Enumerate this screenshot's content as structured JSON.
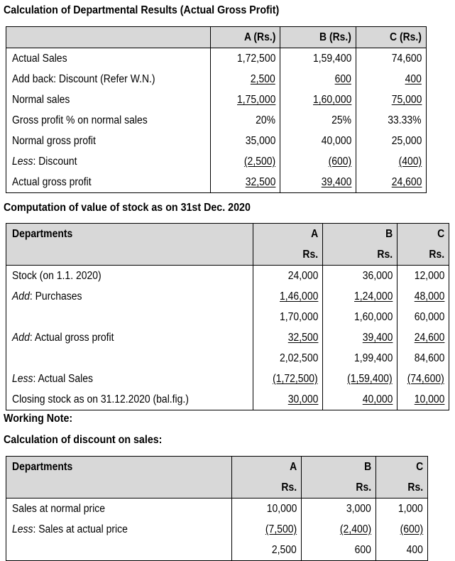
{
  "section1": {
    "title": "Calculation of Departmental Results (Actual Gross Profit)",
    "columns": [
      "A (Rs.)",
      "B (Rs.)",
      "C (Rs.)"
    ],
    "rows": [
      {
        "label": "Actual Sales",
        "values": [
          "1,72,500",
          "1,59,400",
          "74,600"
        ],
        "underline": false
      },
      {
        "label": "Add back: Discount (Refer W.N.)",
        "values": [
          "2,500",
          "600",
          "400"
        ],
        "underline": true
      },
      {
        "label": "Normal sales",
        "values": [
          "1,75,000",
          "1,60,000",
          "75,000"
        ],
        "underline": true
      },
      {
        "label": "Gross profit % on normal sales",
        "values": [
          "20%",
          "25%",
          "33.33%"
        ],
        "underline": false
      },
      {
        "label": "Normal gross profit",
        "values": [
          "35,000",
          "40,000",
          "25,000"
        ],
        "underline": false
      },
      {
        "label_prefix": "Less",
        "label_suffix": ": Discount",
        "values": [
          "(2,500)",
          "(600)",
          "(400)"
        ],
        "underline": true
      },
      {
        "label": "Actual gross profit",
        "values": [
          "32,500",
          "39,400",
          "24,600"
        ],
        "underline": true
      }
    ]
  },
  "section2": {
    "title": "Computation of value of stock as on 31st Dec.  2020",
    "header_label": "Departments",
    "columns": [
      "A",
      "B",
      "C"
    ],
    "units": [
      "Rs.",
      "Rs.",
      "Rs."
    ],
    "rows": [
      {
        "label": "Stock (on 1.1. 2020)",
        "values": [
          "24,000",
          "36,000",
          "12,000"
        ]
      },
      {
        "label_prefix": "Add",
        "label_suffix": ": Purchases",
        "values": [
          "1,46,000",
          "1,24,000",
          "48,000"
        ]
      },
      {
        "label": "",
        "values": [
          "1,70,000",
          "1,60,000",
          "60,000"
        ]
      },
      {
        "label_prefix": "Add",
        "label_suffix": ": Actual gross profit",
        "values": [
          "32,500",
          "39,400",
          "24,600"
        ]
      },
      {
        "label": "",
        "values": [
          "2,02,500",
          "1,99,400",
          "84,600"
        ]
      },
      {
        "label_prefix": "Less",
        "label_suffix": ": Actual Sales",
        "values": [
          "(1,72,500)",
          "(1,59,400)",
          "(74,600)"
        ]
      },
      {
        "label": "Closing stock as on 31.12.2020 (bal.fig.)",
        "values": [
          "30,000",
          "40,000",
          "10,000"
        ]
      }
    ]
  },
  "working_note": {
    "title": "Working Note:",
    "subtitle": "Calculation of discount on sales:",
    "header_label": "Departments",
    "columns": [
      "A",
      "B",
      "C"
    ],
    "units": [
      "Rs.",
      "Rs.",
      "Rs."
    ],
    "rows": [
      {
        "label": "Sales at normal price",
        "values": [
          "10,000",
          "3,000",
          "1,000"
        ]
      },
      {
        "label_prefix": "Less",
        "label_suffix": ": Sales at actual price",
        "values": [
          "(7,500)",
          "(2,400)",
          "(600)"
        ]
      },
      {
        "label": "",
        "values": [
          "2,500",
          "600",
          "400"
        ]
      }
    ]
  }
}
